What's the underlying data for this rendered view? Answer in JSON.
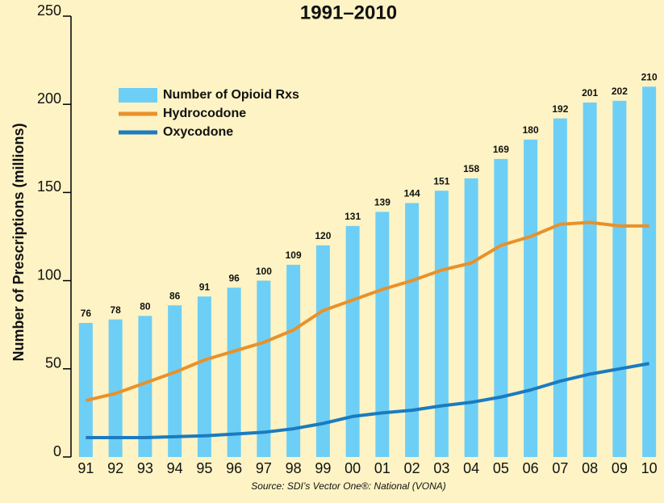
{
  "chart_data": {
    "type": "bar_line",
    "title": "1991–2010",
    "ylabel": "Number of Prescriptions (millions)",
    "source": "Source: SDI’s Vector One®: National (VONA)",
    "categories": [
      "91",
      "92",
      "93",
      "94",
      "95",
      "96",
      "97",
      "98",
      "99",
      "00",
      "01",
      "02",
      "03",
      "04",
      "05",
      "06",
      "07",
      "08",
      "09",
      "10"
    ],
    "ylim": [
      0,
      250
    ],
    "yticks": [
      0,
      50,
      100,
      150,
      200,
      250
    ],
    "legend": "upper left",
    "series": [
      {
        "name": "Number of Opioid Rxs",
        "kind": "bar",
        "color": "#6dcff6",
        "values": [
          76,
          78,
          80,
          86,
          91,
          96,
          100,
          109,
          120,
          131,
          139,
          144,
          151,
          158,
          169,
          180,
          192,
          201,
          202,
          210
        ]
      },
      {
        "name": "Hydrocodone",
        "kind": "line",
        "color": "#e8912b",
        "values": [
          32,
          36,
          42,
          48,
          55,
          60,
          65,
          72,
          83,
          89,
          95,
          100,
          106,
          110,
          120,
          125,
          132,
          133,
          131,
          131
        ]
      },
      {
        "name": "Oxycodone",
        "kind": "line",
        "color": "#1b7bc0",
        "values": [
          11,
          11,
          11,
          11.5,
          12,
          13,
          14,
          16,
          19,
          23,
          25,
          26.5,
          29,
          31,
          34,
          38,
          43,
          47,
          50,
          53
        ]
      }
    ]
  }
}
